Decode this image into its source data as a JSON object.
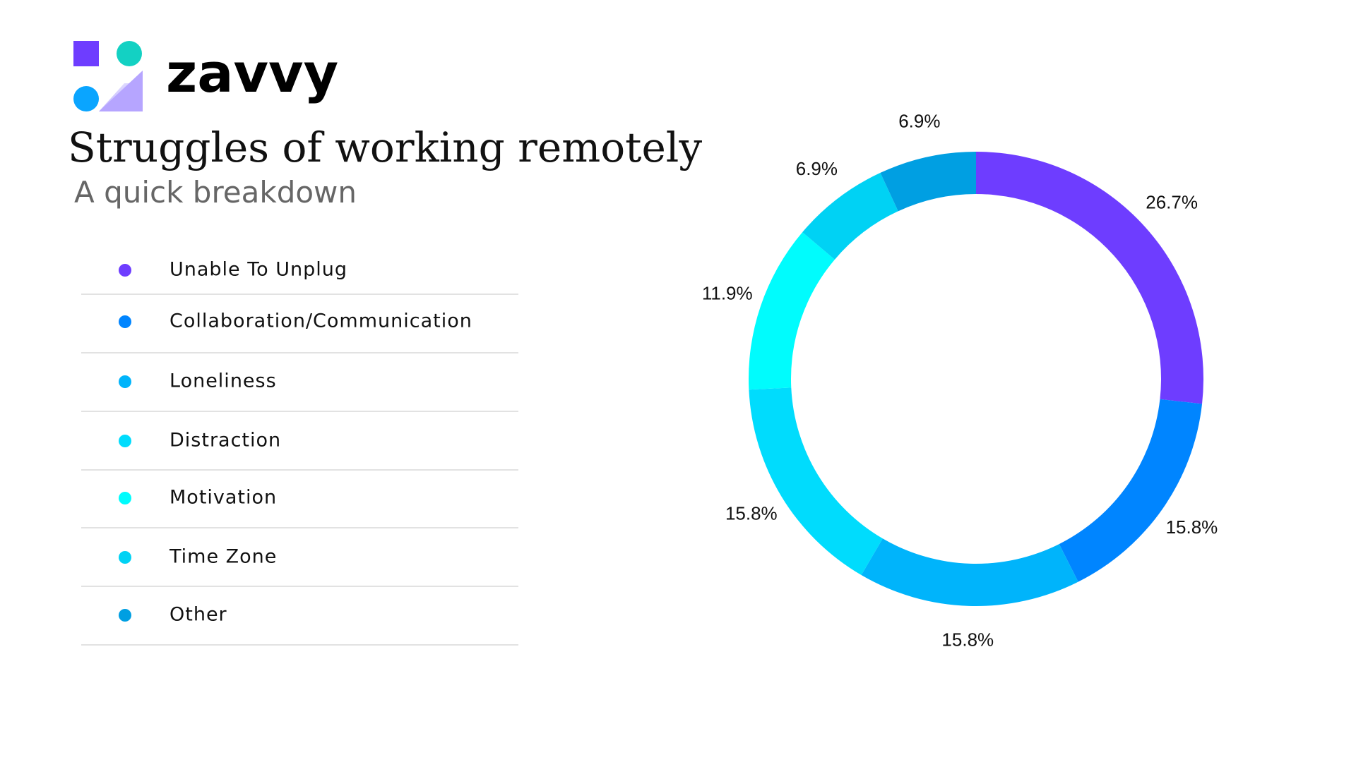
{
  "brand": "zavvy",
  "chart_data": {
    "type": "donut",
    "title": "Struggles of working remotely",
    "subtitle": "A quick breakdown",
    "categories": [
      "Unable To Unplug",
      "Collaboration/Communication",
      "Loneliness",
      "Distraction",
      "Motivation",
      "Time Zone",
      "Other"
    ],
    "values": [
      26.7,
      15.8,
      15.8,
      15.8,
      11.9,
      6.9,
      6.9
    ],
    "value_labels": [
      "26.7%",
      "15.8%",
      "15.8%",
      "15.8%",
      "11.9%",
      "6.9%",
      "6.9%"
    ],
    "colors": [
      "#6e3dff",
      "#0085ff",
      "#00b4fb",
      "#00dcfd",
      "#00fcfd",
      "#00d2f4",
      "#009fe2"
    ],
    "legend_position": "left"
  }
}
